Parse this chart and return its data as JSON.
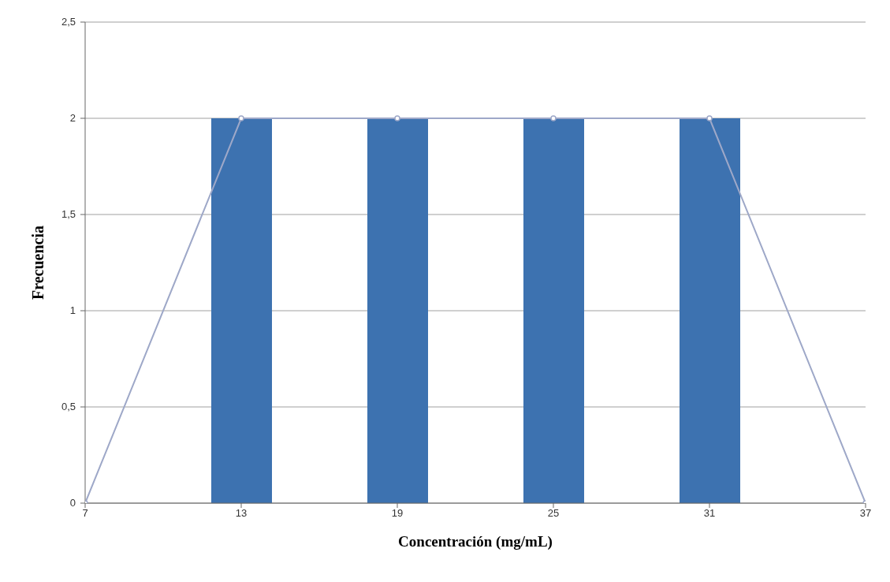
{
  "chart_data": {
    "type": "bar",
    "xlabel": "Concentración (mg/mL)",
    "ylabel": "Frecuencia",
    "xlim": [
      7,
      37
    ],
    "xticks": [
      7,
      13,
      19,
      25,
      31,
      37
    ],
    "ylim": [
      0,
      2.5
    ],
    "yticks": [
      0,
      {
        "value": 0.5,
        "label": "0,5"
      },
      1,
      {
        "value": 1.5,
        "label": "1,5"
      },
      2,
      {
        "value": 2.5,
        "label": "2,5"
      }
    ],
    "grid": "y",
    "legend": false,
    "series": [
      {
        "color": "#3d72b0",
        "x": [
          13,
          19,
          25,
          31
        ],
        "values": [
          2,
          2,
          2,
          2
        ]
      },
      {
        "type": "line",
        "color": "#9ea8c8",
        "marker": "circle",
        "x": [
          7,
          13,
          19,
          25,
          31,
          37
        ],
        "values": [
          0,
          2,
          2,
          2,
          2,
          0
        ]
      }
    ]
  }
}
